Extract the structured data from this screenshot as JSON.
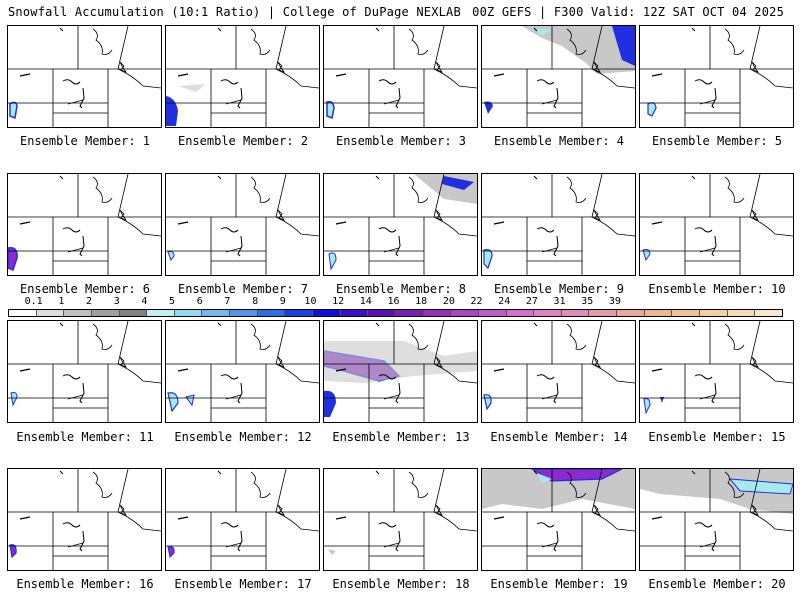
{
  "header": {
    "left": "Snowfall Accumulation (10:1 Ratio) | College of DuPage NEXLAB",
    "right": "00Z GEFS | F300 Valid: 12Z SAT OCT 04 2025"
  },
  "members": [
    {
      "label": "Ensemble Member: 1"
    },
    {
      "label": "Ensemble Member: 2"
    },
    {
      "label": "Ensemble Member: 3"
    },
    {
      "label": "Ensemble Member: 4"
    },
    {
      "label": "Ensemble Member: 5"
    },
    {
      "label": "Ensemble Member: 6"
    },
    {
      "label": "Ensemble Member: 7"
    },
    {
      "label": "Ensemble Member: 8"
    },
    {
      "label": "Ensemble Member: 9"
    },
    {
      "label": "Ensemble Member: 10"
    },
    {
      "label": "Ensemble Member: 11"
    },
    {
      "label": "Ensemble Member: 12"
    },
    {
      "label": "Ensemble Member: 13"
    },
    {
      "label": "Ensemble Member: 14"
    },
    {
      "label": "Ensemble Member: 15"
    },
    {
      "label": "Ensemble Member: 16"
    },
    {
      "label": "Ensemble Member: 17"
    },
    {
      "label": "Ensemble Member: 18"
    },
    {
      "label": "Ensemble Member: 19"
    },
    {
      "label": "Ensemble Member: 20"
    }
  ],
  "scale": {
    "labels": [
      "0.1",
      "1",
      "2",
      "3",
      "4",
      "5",
      "6",
      "7",
      "8",
      "9",
      "10",
      "12",
      "14",
      "16",
      "18",
      "20",
      "22",
      "24",
      "27",
      "31",
      "35",
      "39"
    ],
    "colors": [
      "#ffffff",
      "#dcdcdc",
      "#bebebe",
      "#a0a0a0",
      "#828282",
      "#bfeff5",
      "#93d8f5",
      "#74b7f0",
      "#5096ec",
      "#2e6fe5",
      "#1a3fe0",
      "#1010d8",
      "#3b0fc8",
      "#5a12b8",
      "#7a1eb4",
      "#9630b8",
      "#ad45c0",
      "#c25ac8",
      "#d470cc",
      "#e07fc6",
      "#e08cb8",
      "#e59aa8",
      "#e8a89a",
      "#ecb690",
      "#f0c490",
      "#f3d0a0",
      "#f5dcb4",
      "#f8e8cc"
    ]
  },
  "colors": {
    "snow_light": "#c8c8c8",
    "snow_mid": "#9a9a9a",
    "snow_cyan": "#a8e8f0",
    "snow_blue": "#2030e0",
    "snow_purple": "#8a2ad0"
  }
}
